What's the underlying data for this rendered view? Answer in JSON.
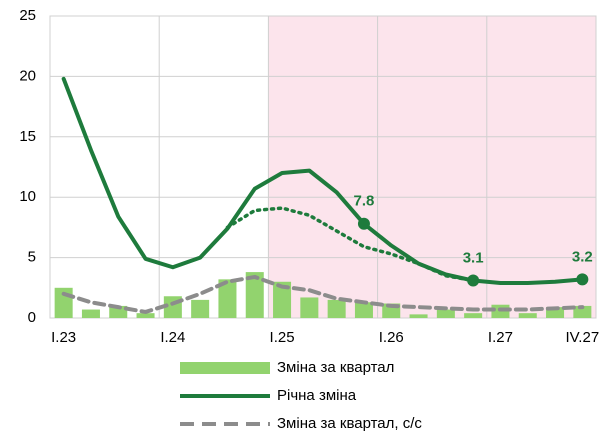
{
  "chart_data": {
    "type": "combo",
    "categories": [
      "I.23",
      null,
      null,
      null,
      "I.24",
      null,
      null,
      null,
      "I.25",
      null,
      null,
      null,
      "I.26",
      null,
      null,
      null,
      "I.27",
      null,
      null,
      "IV.27"
    ],
    "ylim": [
      0,
      25
    ],
    "yticks": [
      0,
      5,
      10,
      15,
      20,
      25
    ],
    "grid": true,
    "shaded_from": 8,
    "shade_color": "#fce4ec",
    "series": [
      {
        "name": "Зміна за квартал",
        "type": "bar",
        "color": "#92d36e",
        "values": [
          2.5,
          0.7,
          1.0,
          0.4,
          1.8,
          1.5,
          3.2,
          3.8,
          3.0,
          1.7,
          1.5,
          1.3,
          1.2,
          0.3,
          0.7,
          0.4,
          1.1,
          0.4,
          0.9,
          1.0
        ]
      },
      {
        "name": "Річна зміна",
        "type": "line",
        "color": "#1e7b3c",
        "values": [
          19.8,
          13.9,
          8.4,
          4.9,
          4.2,
          5.0,
          7.4,
          10.7,
          12.0,
          12.2,
          10.4,
          7.8,
          6.0,
          4.5,
          3.6,
          3.1,
          2.9,
          2.9,
          3.0,
          3.2
        ],
        "markers": [
          11,
          15,
          19
        ]
      },
      {
        "name": "Зміна за квартал, с/с",
        "type": "line",
        "style": "dashed",
        "color": "#8c8c8c",
        "values": [
          2.0,
          1.3,
          0.9,
          0.5,
          1.2,
          2.0,
          3.0,
          3.4,
          2.6,
          2.3,
          1.6,
          1.3,
          1.0,
          0.9,
          0.8,
          0.7,
          0.7,
          0.7,
          0.8,
          0.9
        ]
      },
      {
        "type": "line",
        "style": "dotted",
        "color": "#1e7b3c",
        "legend": false,
        "values": [
          null,
          null,
          null,
          null,
          null,
          null,
          7.5,
          8.9,
          9.1,
          8.5,
          7.2,
          5.9,
          5.3,
          4.5,
          3.5,
          3.1,
          null,
          null,
          null,
          null
        ]
      }
    ]
  }
}
